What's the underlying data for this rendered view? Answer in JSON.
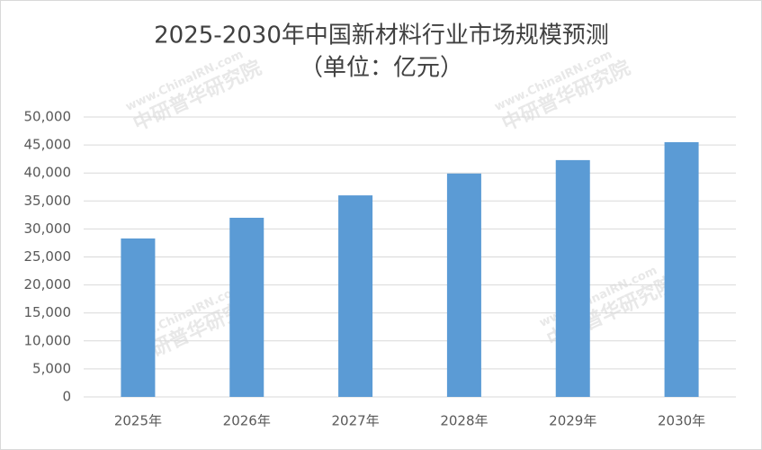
{
  "chart_data": {
    "type": "bar",
    "title": "2025-2030年中国新材料行业市场规模预测",
    "subtitle": "（单位：亿元）",
    "watermark": "中研普华研究院",
    "watermark_url": "www.ChinaIRN.com",
    "categories": [
      "2025年",
      "2026年",
      "2027年",
      "2028年",
      "2029年",
      "2030年"
    ],
    "values": [
      28300,
      32000,
      36000,
      39900,
      42300,
      45500
    ],
    "color": "#5b9bd5",
    "ylim": [
      0,
      50000
    ],
    "yticks": [
      0,
      {
        "value": 5000,
        "label": "5,000"
      },
      {
        "value": 10000,
        "label": "10,000"
      },
      {
        "value": 15000,
        "label": "15,000"
      },
      {
        "value": 20000,
        "label": "20,000"
      },
      {
        "value": 25000,
        "label": "25,000"
      },
      {
        "value": 30000,
        "label": "30,000"
      },
      {
        "value": 35000,
        "label": "35,000"
      },
      {
        "value": 40000,
        "label": "40,000"
      },
      {
        "value": 45000,
        "label": "45,000"
      },
      {
        "value": 50000,
        "label": "50,000"
      }
    ],
    "grid": true
  }
}
